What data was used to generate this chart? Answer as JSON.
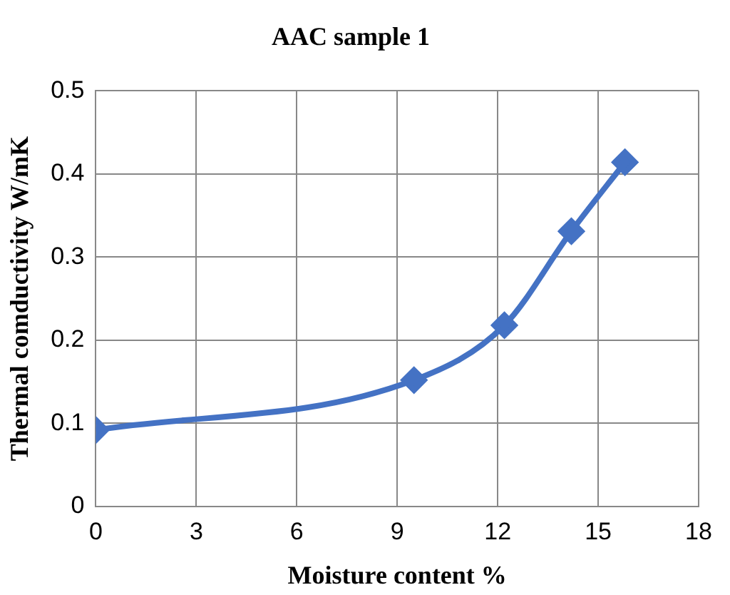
{
  "chart_data": {
    "type": "line",
    "title": "AAC sample 1",
    "xlabel": "Moisture content %",
    "ylabel": "Thermal comductivity W/mK",
    "x": [
      0,
      9.5,
      12.2,
      14.2,
      15.8
    ],
    "series": [
      {
        "color": "#4472c4",
        "values": [
          0.092,
          0.152,
          0.218,
          0.331,
          0.414
        ]
      }
    ],
    "xlim": [
      0,
      18
    ],
    "xticks": [
      0,
      3,
      6,
      9,
      12,
      15,
      18
    ],
    "ylim": [
      0,
      0.5
    ],
    "yticks": [
      0,
      0.1,
      0.2,
      0.3,
      0.4,
      0.5
    ],
    "grid": true,
    "legend": false,
    "marker": "diamond",
    "line_style": "solid"
  }
}
